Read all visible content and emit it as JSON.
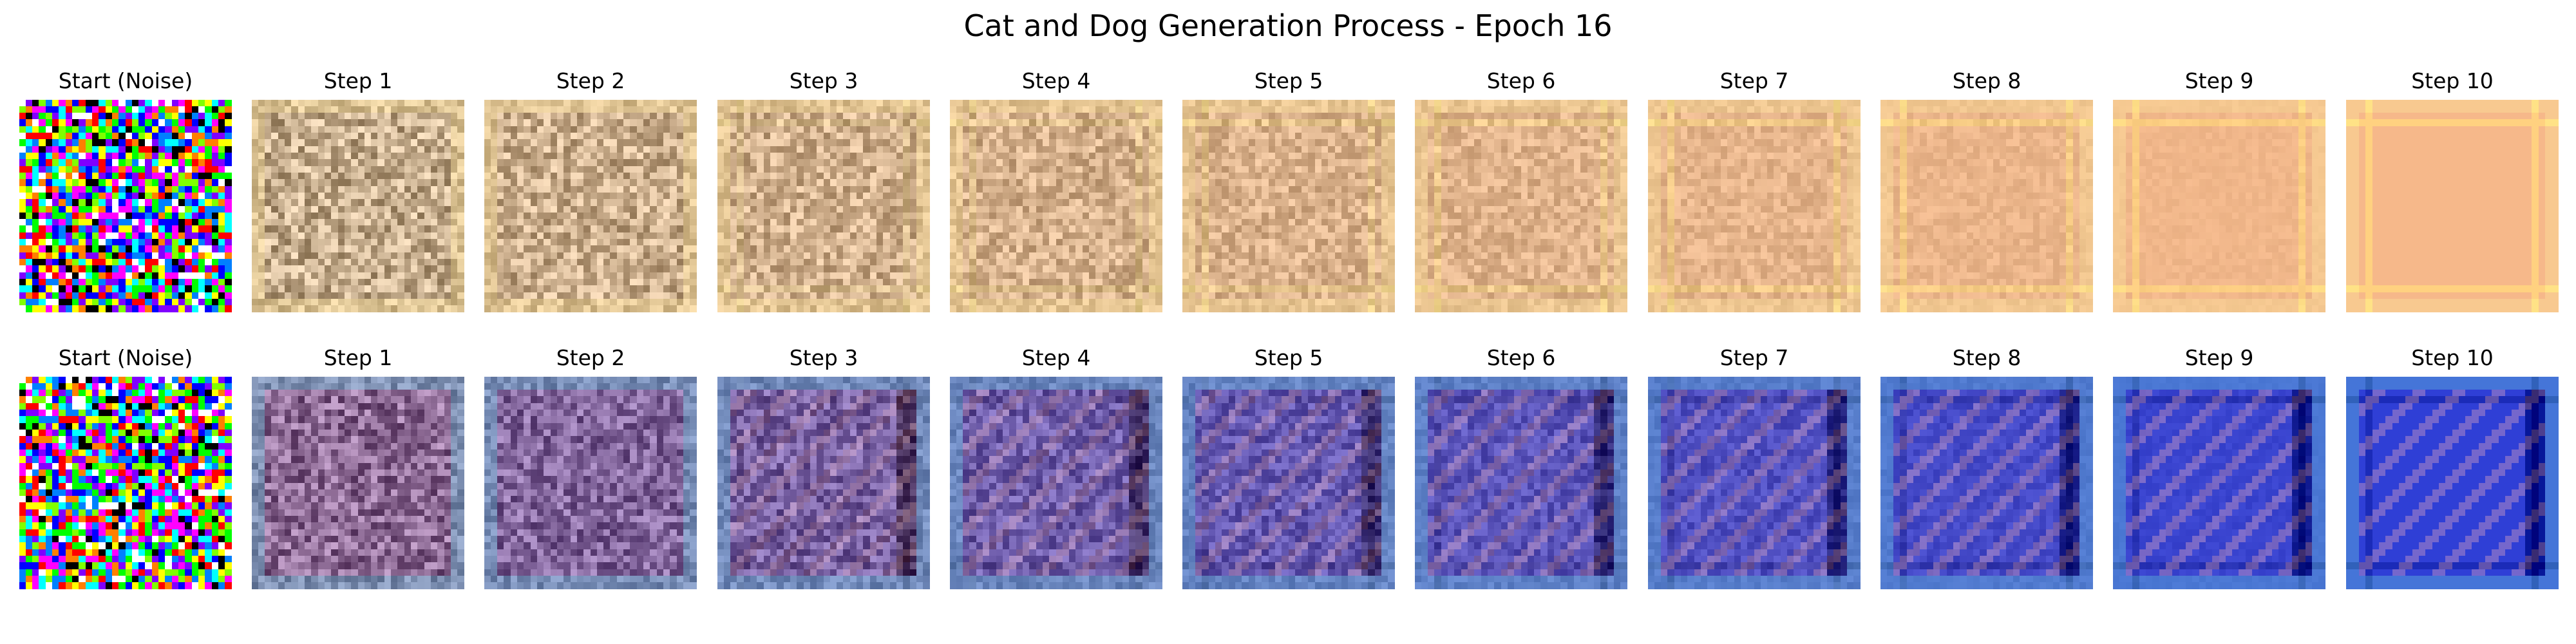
{
  "title": "Cat and Dog Generation Process - Epoch 16",
  "rows": [
    {
      "kind": "warm",
      "labels": [
        "Start (Noise)",
        "Step 1",
        "Step 2",
        "Step 3",
        "Step 4",
        "Step 5",
        "Step 6",
        "Step 7",
        "Step 8",
        "Step 9",
        "Step 10"
      ],
      "base_color": "#f6b88a",
      "edge_color": "#fbe29a"
    },
    {
      "kind": "cool",
      "labels": [
        "Start (Noise)",
        "Step 1",
        "Step 2",
        "Step 3",
        "Step 4",
        "Step 5",
        "Step 6",
        "Step 7",
        "Step 8",
        "Step 9",
        "Step 10"
      ],
      "base_color": "#2f3fd6",
      "edge_color": "#65c6dc"
    }
  ]
}
